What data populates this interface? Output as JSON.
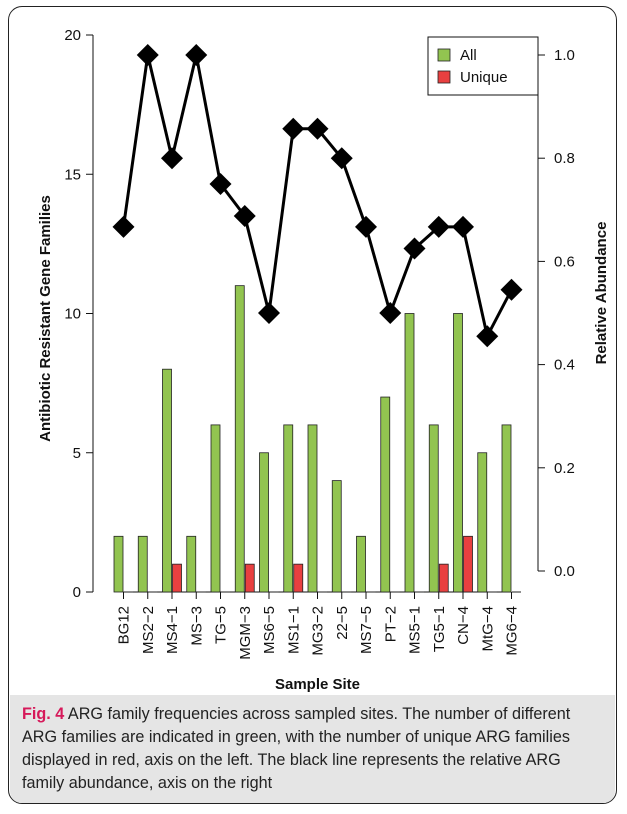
{
  "chart_data": {
    "type": "bar",
    "categories": [
      "BG12",
      "MS2−2",
      "MS4−1",
      "MS−3",
      "TG−5",
      "MGM−3",
      "MS6−5",
      "MS1−1",
      "MG3−2",
      "22−5",
      "MS7−5",
      "PT−2",
      "MS5−1",
      "TG5−1",
      "CN−4",
      "MtG−4",
      "MG6−4"
    ],
    "series": [
      {
        "name": "All",
        "color": "#92c450",
        "values": [
          2,
          2,
          8,
          2,
          6,
          11,
          5,
          6,
          6,
          4,
          2,
          7,
          10,
          6,
          10,
          5,
          6
        ]
      },
      {
        "name": "Unique",
        "color": "#e84040",
        "values": [
          0,
          0,
          1,
          0,
          0,
          1,
          0,
          1,
          0,
          0,
          0,
          0,
          0,
          1,
          2,
          0,
          0
        ]
      }
    ],
    "line": {
      "axis": "right",
      "color": "#000000",
      "values": [
        0.667,
        1.0,
        0.8,
        1.0,
        0.75,
        0.688,
        0.5,
        0.857,
        0.857,
        0.8,
        0.667,
        0.5,
        0.625,
        0.667,
        0.667,
        0.455,
        0.545
      ]
    },
    "xlabel": "Sample Site",
    "ylabel": "Antibiotic Resistant Gene Families",
    "y2label": "Relative Abundance",
    "ylim": [
      0,
      20
    ],
    "y2lim": [
      0,
      1.0
    ],
    "yticks": [
      "0",
      "5",
      "10",
      "15",
      "20"
    ],
    "y2ticks": [
      "0.0",
      "0.2",
      "0.4",
      "0.6",
      "0.8",
      "1.0"
    ],
    "legend_position": "top-right",
    "grid": false
  },
  "caption": {
    "label": "Fig. 4",
    "text": "ARG family frequencies across sampled sites. The number of different ARG families are indicated in green, with the number of unique ARG families displayed in red, axis on the left. The black line represents the relative ARG family abundance, axis on the right"
  }
}
